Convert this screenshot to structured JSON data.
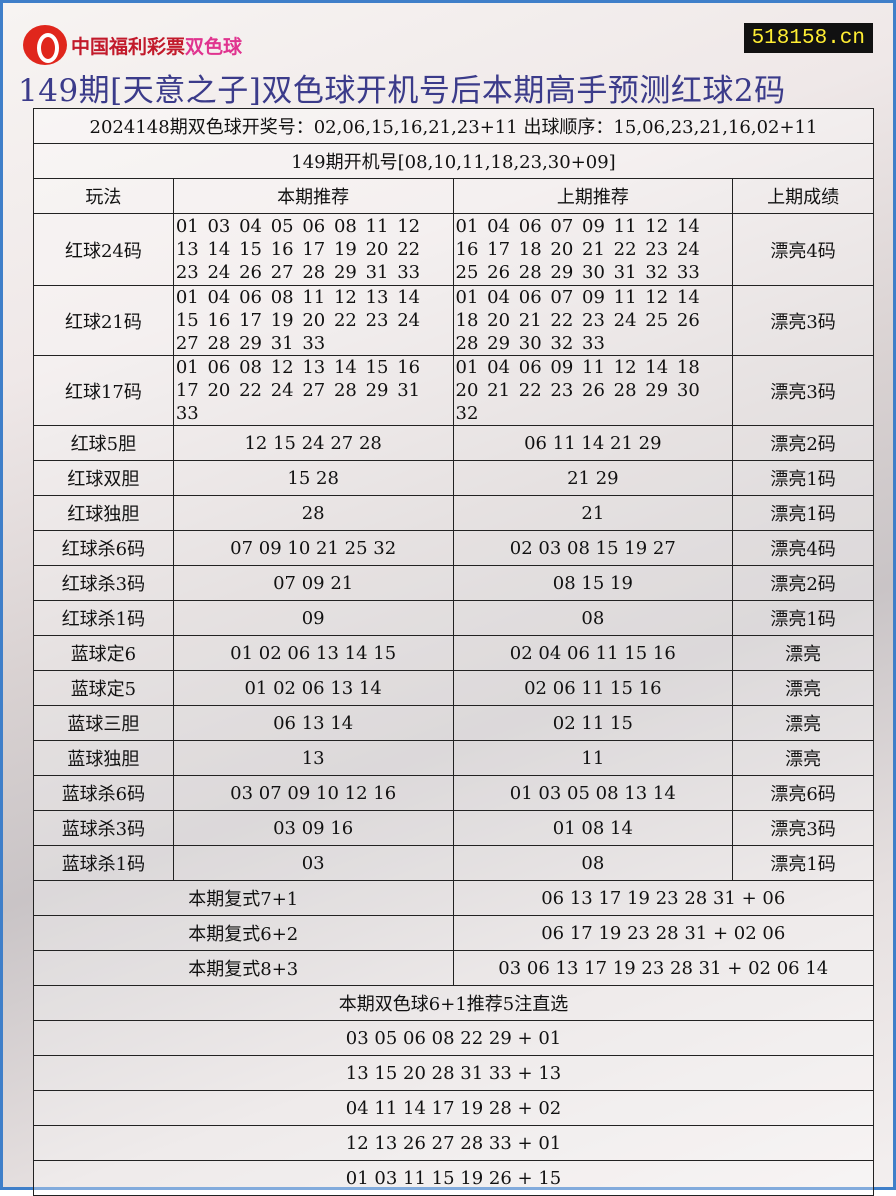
{
  "logo": {
    "text_main": "中国福利彩票",
    "text_brand": "双色球"
  },
  "site": "518158.cn",
  "title": "149期[天意之子]双色球开机号后本期高手预测红球2码",
  "draw_info": "2024148期双色球开奖号：02,06,15,16,21,23+11 出球顺序：15,06,23,21,16,02+11",
  "machine_numbers": "149期开机号[08,10,11,18,23,30+09]",
  "headers": [
    "玩法",
    "本期推荐",
    "上期推荐",
    "上期成绩"
  ],
  "rows": [
    {
      "play": "红球24码",
      "current": "01 03 04 05 06 08 11 12 13 14 15 16 17 19 20 22 23 24 26 27 28 29 31 33",
      "previous": "01 04 06 07 09 11 12 14 16 17 18 20 21 22 23 24 25 26 28 29 30 31 32 33",
      "result": "漂亮4码"
    },
    {
      "play": "红球21码",
      "current": "01 04 06 08 11 12 13 14 15 16 17 19 20 22 23 24 27 28 29 31 33",
      "previous": "01 04 06 07 09 11 12 14 18 20 21 22 23 24 25 26 28 29 30 32 33",
      "result": "漂亮3码"
    },
    {
      "play": "红球17码",
      "current": "01 06 08 12 13 14 15 16 17 20 22 24 27 28 29 31 33",
      "previous": "01 04 06 09 11 12 14 18 20 21 22 23 26 28 29 30 32",
      "result": "漂亮3码"
    },
    {
      "play": "红球5胆",
      "current": "12 15 24 27 28",
      "previous": "06 11 14 21 29",
      "result": "漂亮2码"
    },
    {
      "play": "红球双胆",
      "current": "15 28",
      "previous": "21 29",
      "result": "漂亮1码"
    },
    {
      "play": "红球独胆",
      "current": "28",
      "previous": "21",
      "result": "漂亮1码"
    },
    {
      "play": "红球杀6码",
      "current": "07 09 10 21 25 32",
      "previous": "02 03 08 15 19 27",
      "result": "漂亮4码"
    },
    {
      "play": "红球杀3码",
      "current": "07 09 21",
      "previous": "08 15 19",
      "result": "漂亮2码"
    },
    {
      "play": "红球杀1码",
      "current": "09",
      "previous": "08",
      "result": "漂亮1码"
    },
    {
      "play": "蓝球定6",
      "current": "01 02 06 13 14 15",
      "previous": "02 04 06 11 15 16",
      "result": "漂亮"
    },
    {
      "play": "蓝球定5",
      "current": "01 02 06 13 14",
      "previous": "02 06 11 15 16",
      "result": "漂亮"
    },
    {
      "play": "蓝球三胆",
      "current": "06 13 14",
      "previous": "02 11 15",
      "result": "漂亮"
    },
    {
      "play": "蓝球独胆",
      "current": "13",
      "previous": "11",
      "result": "漂亮"
    },
    {
      "play": "蓝球杀6码",
      "current": "03 07 09 10 12 16",
      "previous": "01 03 05 08 13 14",
      "result": "漂亮6码"
    },
    {
      "play": "蓝球杀3码",
      "current": "03 09 16",
      "previous": "01 08 14",
      "result": "漂亮3码"
    },
    {
      "play": "蓝球杀1码",
      "current": "03",
      "previous": "08",
      "result": "漂亮1码"
    }
  ],
  "compound": [
    {
      "label": "本期复式7+1",
      "value": "06 13 17 19 23 28 31 + 06"
    },
    {
      "label": "本期复式6+2",
      "value": "06 17 19 23 28 31 + 02 06"
    },
    {
      "label": "本期复式8+3",
      "value": "03 06 13 17 19 23 28 31 + 02 06 14"
    }
  ],
  "picks_title": "本期双色球6+1推荐5注直选",
  "picks": [
    "03 05 06 08 22 29 + 01",
    "13 15 20 28 31 33 + 13",
    "04 11 14 17 19 28 + 02",
    "12 13 26 27 28 33 + 01",
    "01 03 11 15 19 26 + 15"
  ]
}
